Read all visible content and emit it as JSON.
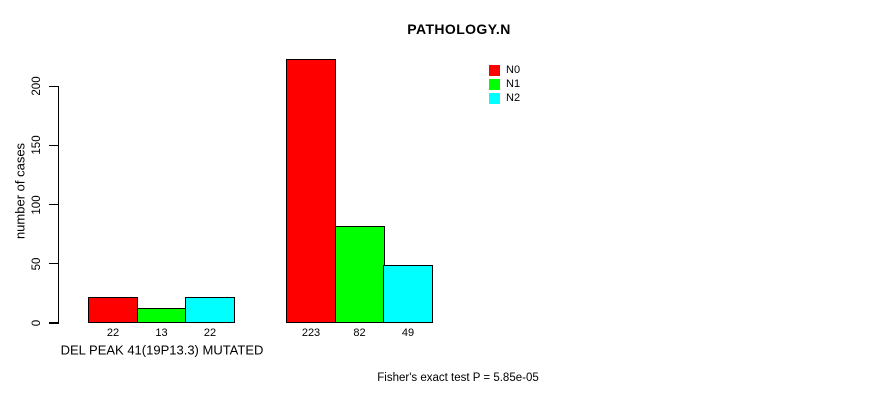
{
  "chart_data": {
    "type": "bar",
    "title": "PATHOLOGY.N",
    "ylabel": "number of cases",
    "xlabel": "DEL PEAK 41(19P13.3) MUTATED",
    "footnote": "Fisher's exact test P = 5.85e-05",
    "yticks": [
      0,
      50,
      100,
      150,
      200
    ],
    "ylim": [
      0,
      223
    ],
    "grid": false,
    "legend_position": "top-right",
    "categories": [
      "DEL PEAK 41(19P13.3) MUTATED",
      ""
    ],
    "series": [
      {
        "name": "N0",
        "color": "#FF0000",
        "values": [
          22,
          223
        ]
      },
      {
        "name": "N1",
        "color": "#00FF00",
        "values": [
          13,
          82
        ]
      },
      {
        "name": "N2",
        "color": "#00FFFF",
        "values": [
          22,
          49
        ]
      }
    ],
    "bar_value_labels": [
      [
        "22",
        "13",
        "22"
      ],
      [
        "223",
        "82",
        "49"
      ]
    ]
  }
}
